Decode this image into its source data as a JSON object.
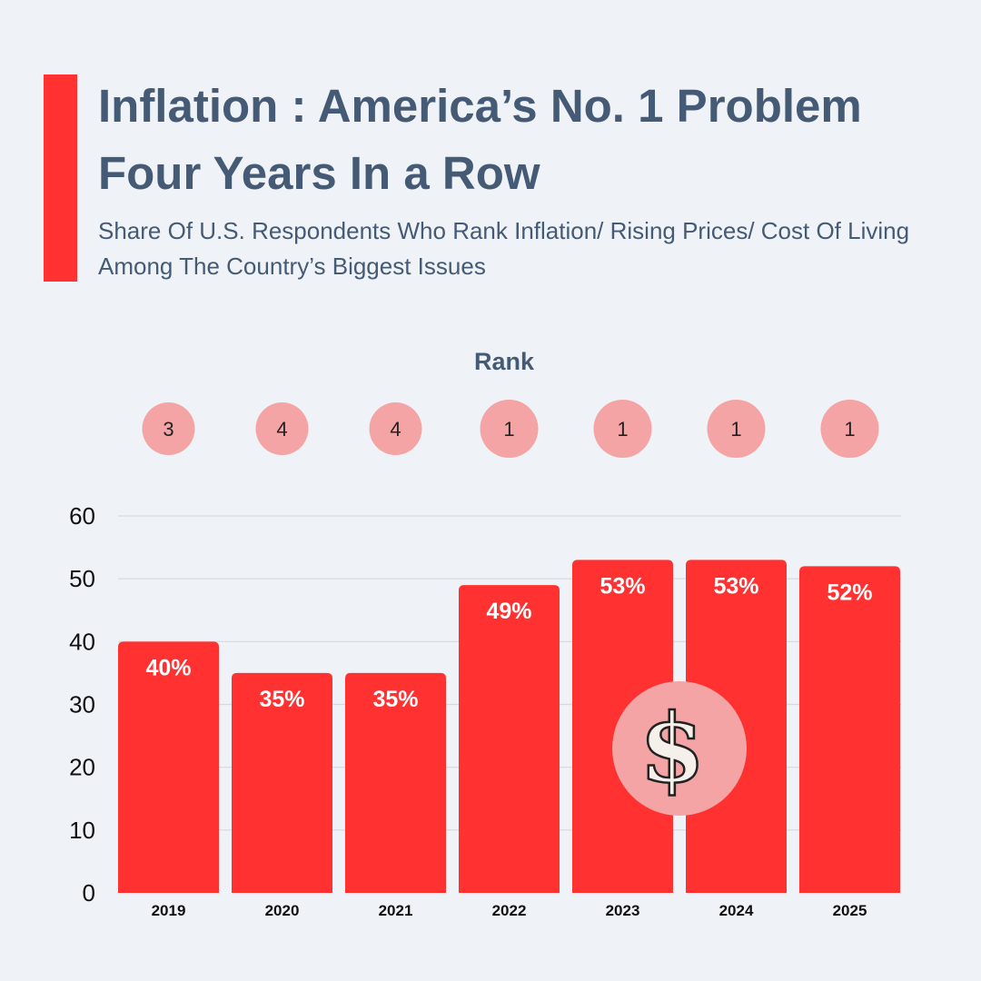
{
  "header": {
    "title": "Inflation : America’s No. 1 Problem Four Years In a Row",
    "subtitle": "Share Of U.S. Respondents Who Rank Inflation/ Rising Prices/ Cost Of Living Among The Country’s Biggest Issues"
  },
  "rank": {
    "label": "Rank",
    "values": [
      "3",
      "4",
      "4",
      "1",
      "1",
      "1",
      "1"
    ]
  },
  "colors": {
    "bar": "#ff3131",
    "rank_circle": "#f4a4a4",
    "text_dark": "#455a74",
    "background": "#eff3f7",
    "grid": "#d3d9df"
  },
  "icons": {
    "center": "dollar-sign-icon",
    "center_glyph": "$"
  },
  "chart_data": {
    "type": "bar",
    "categories": [
      "2019",
      "2020",
      "2021",
      "2022",
      "2023",
      "2024",
      "2025"
    ],
    "values": [
      40,
      35,
      35,
      49,
      53,
      53,
      52
    ],
    "data_labels": [
      "40%",
      "35%",
      "35%",
      "49%",
      "53%",
      "53%",
      "52%"
    ],
    "yticks": [
      "0",
      "10",
      "20",
      "30",
      "40",
      "50",
      "60"
    ],
    "ylim": [
      0,
      60
    ],
    "grid": true,
    "legend": "none"
  }
}
